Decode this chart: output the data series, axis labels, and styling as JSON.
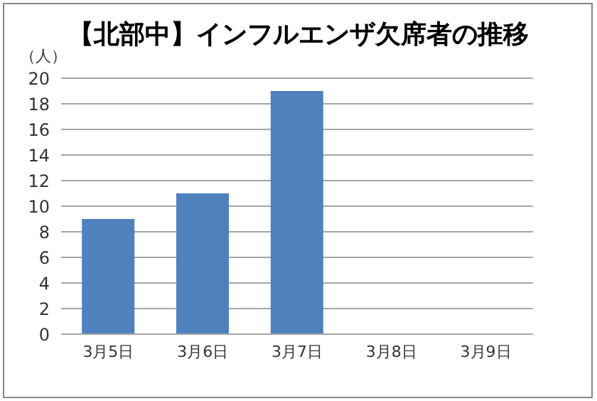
{
  "chart_data": {
    "type": "bar",
    "title": "【北部中】インフルエンザ欠席者の推移",
    "ylabel": "（人）",
    "categories": [
      "3月5日",
      "3月6日",
      "3月7日",
      "3月8日",
      "3月9日"
    ],
    "values": [
      9,
      11,
      19,
      null,
      null
    ],
    "color": "#4f81bd",
    "ylim": [
      0,
      20
    ],
    "yticks": [
      0,
      2,
      4,
      6,
      8,
      10,
      12,
      14,
      16,
      18,
      20
    ],
    "grid": "y"
  }
}
